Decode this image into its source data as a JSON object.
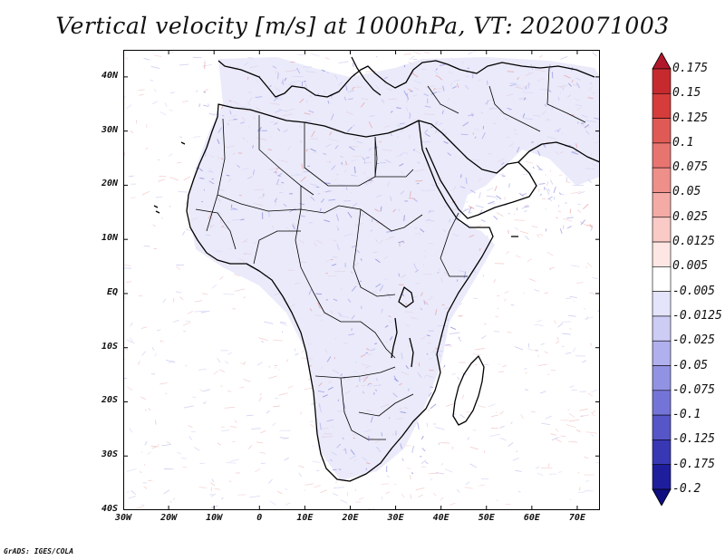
{
  "title": "Vertical velocity [m/s] at 1000hPa, VT: 2020071003",
  "credit": "GrADS: IGES/COLA",
  "map": {
    "projection": "lat-lon",
    "lon_range": [
      -30,
      75
    ],
    "lat_range": [
      -40,
      45
    ],
    "lat_labels": [
      "40N",
      "30N",
      "20N",
      "10N",
      "EQ",
      "10S",
      "20S",
      "30S",
      "40S"
    ],
    "lat_values": [
      40,
      30,
      20,
      10,
      0,
      -10,
      -20,
      -30,
      -40
    ],
    "lon_labels": [
      "30W",
      "20W",
      "10W",
      "0",
      "10E",
      "20E",
      "30E",
      "40E",
      "50E",
      "60E",
      "70E"
    ],
    "lon_values": [
      -30,
      -20,
      -10,
      0,
      10,
      20,
      30,
      40,
      50,
      60,
      70
    ]
  },
  "colorbar": {
    "labels": [
      "0.175",
      "0.15",
      "0.125",
      "0.1",
      "0.075",
      "0.05",
      "0.025",
      "0.0125",
      "0.005",
      "-0.005",
      "-0.0125",
      "-0.025",
      "-0.05",
      "-0.075",
      "-0.1",
      "-0.125",
      "-0.175",
      "-0.2"
    ],
    "colors": [
      "#b2182b",
      "#c62a2f",
      "#d63c3a",
      "#e05a55",
      "#e87470",
      "#ef8f8a",
      "#f4aaa5",
      "#f9cac6",
      "#fde6e3",
      "#ffffff",
      "#e4e4fb",
      "#ccccf5",
      "#b0b0ee",
      "#9292e4",
      "#7474d8",
      "#5656c8",
      "#3838b4",
      "#1e1e9c",
      "#0e0e80"
    ]
  }
}
